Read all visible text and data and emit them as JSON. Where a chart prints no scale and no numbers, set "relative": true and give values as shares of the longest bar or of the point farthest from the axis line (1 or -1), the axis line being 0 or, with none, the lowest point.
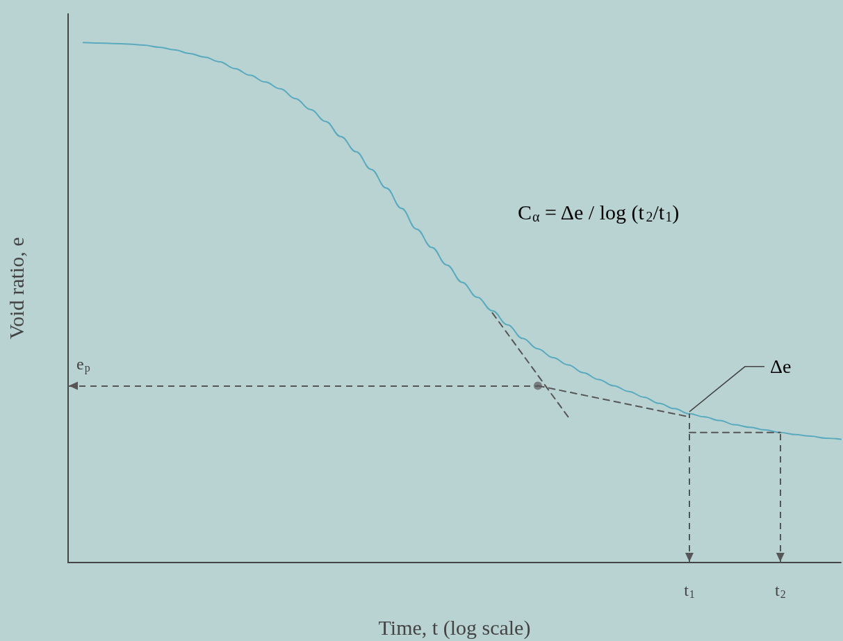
{
  "chart_data": {
    "type": "line",
    "relative": true,
    "xlabel": "Time, t (log scale)",
    "ylabel": "Void ratio, e",
    "marker": "none",
    "line_style": "solid",
    "grid": false,
    "categories": [
      null,
      null,
      null,
      null,
      null,
      null,
      null,
      null,
      null,
      null,
      null,
      null,
      null,
      null,
      null,
      null,
      null,
      null,
      null,
      null,
      null,
      null,
      null,
      null,
      null,
      null,
      null,
      null,
      null,
      null,
      null,
      null,
      null,
      null,
      null,
      null,
      null,
      null,
      null,
      null,
      null,
      "t$_{1}$",
      null,
      null,
      null,
      null,
      null,
      "t$_{2}$",
      null,
      null,
      null,
      null
    ],
    "series": [
      {
        "color": "#5aaabf",
        "values": [
          null,
          1,
          0.999,
          0.998,
          0.997,
          0.995,
          0.991,
          0.986,
          0.979,
          0.972,
          0.963,
          0.95,
          0.937,
          0.924,
          0.911,
          0.892,
          0.871,
          0.848,
          0.819,
          0.79,
          0.756,
          0.72,
          0.681,
          0.641,
          0.606,
          0.572,
          0.539,
          0.51,
          0.484,
          0.457,
          0.431,
          0.411,
          0.394,
          0.38,
          0.365,
          0.352,
          0.34,
          0.329,
          0.318,
          0.306,
          0.296,
          0.286,
          0.28,
          0.273,
          0.265,
          0.26,
          0.255,
          0.25,
          0.246,
          0.243,
          0.239,
          0.237
        ]
      },
      {
        "type": "line",
        "color": "#555555",
        "line_style": "dashed",
        "values": [
          null,
          null,
          null,
          null,
          null,
          null,
          null,
          null,
          null,
          null,
          null,
          null,
          null,
          null,
          null,
          null,
          null,
          null,
          null,
          null,
          null,
          null,
          null,
          null,
          null,
          null,
          null,
          null,
          0.48,
          null,
          null,
          null,
          null,
          0.28,
          null,
          null,
          null,
          null,
          null,
          null,
          null,
          null,
          null,
          null,
          null,
          null,
          null,
          null,
          null,
          null,
          null,
          null
        ]
      },
      {
        "type": "line",
        "color": "#555555",
        "line_style": "dashed",
        "values": [
          null,
          null,
          null,
          null,
          null,
          null,
          null,
          null,
          null,
          null,
          null,
          null,
          null,
          null,
          null,
          null,
          null,
          null,
          null,
          null,
          null,
          null,
          null,
          null,
          null,
          null,
          null,
          null,
          null,
          null,
          null,
          0.34,
          null,
          null,
          null,
          null,
          null,
          null,
          null,
          null,
          null,
          0.28,
          null,
          null,
          null,
          null,
          null,
          null,
          null,
          null,
          null,
          null
        ]
      },
      {
        "type": "line",
        "color": "#555555",
        "line_style": "dashed",
        "values": [
          null,
          null,
          null,
          null,
          null,
          null,
          null,
          null,
          null,
          null,
          null,
          null,
          null,
          null,
          null,
          null,
          null,
          null,
          null,
          null,
          null,
          null,
          null,
          null,
          null,
          null,
          null,
          null,
          null,
          null,
          null,
          null,
          null,
          null,
          null,
          null,
          null,
          null,
          null,
          null,
          null,
          0.25,
          null,
          null,
          null,
          null,
          null,
          0.25,
          null,
          null,
          null,
          null
        ]
      },
      {
        "type": "scatter",
        "color": "#666666",
        "marker": "circle",
        "values": [
          null,
          null,
          null,
          null,
          null,
          null,
          null,
          null,
          null,
          null,
          null,
          null,
          null,
          null,
          null,
          null,
          null,
          null,
          null,
          null,
          null,
          null,
          null,
          null,
          null,
          null,
          null,
          null,
          null,
          null,
          null,
          0.34,
          null,
          null,
          null,
          null,
          null,
          null,
          null,
          null,
          null,
          null,
          null,
          null,
          null,
          null,
          null,
          null,
          null,
          null,
          null,
          null
        ]
      }
    ],
    "ref_lines": [
      {
        "axis": "y",
        "value": 0.34,
        "label": "e$_{p}$",
        "line_style": "dashed",
        "color": "#555555"
      },
      {
        "axis": "x",
        "value": "t$_{1}$",
        "line_style": "dashed",
        "color": "#555555"
      },
      {
        "axis": "x",
        "value": "t$_{2}$",
        "line_style": "dashed",
        "color": "#555555"
      }
    ],
    "annotations": [
      "C$_{α}$ = Δe / log (t$_{2}$/t$_{1}$)",
      {
        "text": "Δe",
        "x": "t$_{1}$",
        "y": 0.29
      }
    ]
  }
}
